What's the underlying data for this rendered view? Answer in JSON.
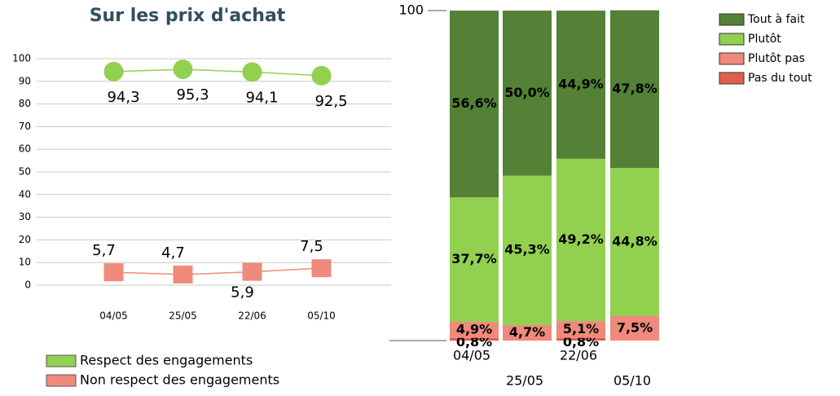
{
  "chart_data": [
    {
      "type": "line",
      "title": "Sur les prix d'achat",
      "categories": [
        "04/05",
        "25/05",
        "22/06",
        "05/10"
      ],
      "series": [
        {
          "name": "Non respect des engagements",
          "color": "#ef8a7c",
          "values": [
            5.7,
            4.7,
            5.9,
            7.5
          ],
          "value_labels": [
            "5,7",
            "4,7",
            "5,9",
            "7,5"
          ]
        },
        {
          "name": "Respect des engagements",
          "color": "#92d050",
          "values": [
            94.3,
            95.3,
            94.1,
            92.5
          ],
          "value_labels": [
            "94,3",
            "95,3",
            "94,1",
            "92,5"
          ]
        }
      ],
      "ylim": [
        -10,
        100
      ],
      "yticks": [
        0,
        10,
        20,
        30,
        40,
        50,
        60,
        70,
        80,
        90,
        100
      ],
      "grid": true,
      "legend": "bottom"
    },
    {
      "type": "stacked_bar",
      "categories": [
        "04/05",
        "25/05",
        "22/06",
        "05/10"
      ],
      "series": [
        {
          "name": "Tout à fait",
          "color": "#538135",
          "values": [
            56.6,
            50.0,
            44.9,
            47.8
          ],
          "value_labels": [
            "56,6%",
            "50,0%",
            "44,9%",
            "47,8%"
          ]
        },
        {
          "name": "Plutôt",
          "color": "#92d050",
          "values": [
            37.7,
            45.3,
            49.2,
            44.8
          ],
          "value_labels": [
            "37,7%",
            "45,3%",
            "49,2%",
            "44,8%"
          ]
        },
        {
          "name": "Plutôt pas",
          "color": "#ef8a7c",
          "values": [
            4.9,
            4.7,
            5.1,
            7.5
          ],
          "value_labels": [
            "4,9%",
            "4,7%",
            "5,1%",
            "7,5%"
          ]
        },
        {
          "name": "Pas du tout",
          "color": "#e0604e",
          "values": [
            0.8,
            null,
            0.8,
            null
          ],
          "value_labels": [
            "0,8%",
            null,
            "0,8%",
            null
          ]
        }
      ],
      "ylim": [
        0,
        100
      ],
      "yticks": [
        100
      ],
      "legend": "top-right"
    }
  ]
}
